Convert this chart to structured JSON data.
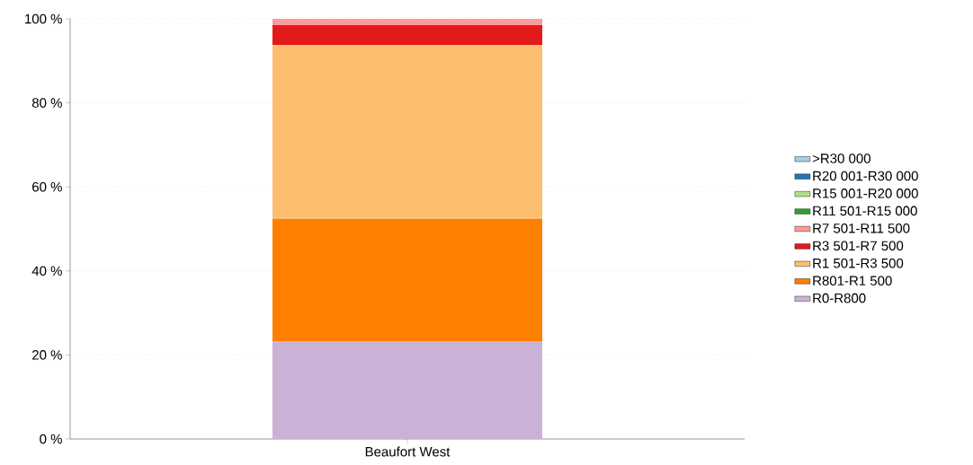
{
  "chart_data": {
    "type": "bar",
    "stacked": true,
    "categories": [
      "Beaufort West"
    ],
    "series": [
      {
        "name": "R0-R800",
        "color": "#cab2d6",
        "values": [
          23.3
        ]
      },
      {
        "name": "R801-R1 500",
        "color": "#ff7f00",
        "values": [
          29.1
        ]
      },
      {
        "name": "R1 501-R3 500",
        "color": "#fdbf6f",
        "values": [
          41.4
        ]
      },
      {
        "name": "R3 501-R7 500",
        "color": "#e31a1c",
        "values": [
          4.7
        ]
      },
      {
        "name": "R7 501-R11 500",
        "color": "#fb9a99",
        "values": [
          1.5
        ]
      },
      {
        "name": "R11 501-R15 000",
        "color": "#33a02c",
        "values": [
          0
        ]
      },
      {
        "name": "R15 001-R20 000",
        "color": "#b2df8a",
        "values": [
          0
        ]
      },
      {
        "name": "R20 001-R30 000",
        "color": "#1f78b4",
        "values": [
          0
        ]
      },
      {
        "name": ">R30 000",
        "color": "#a6cee3",
        "values": [
          0
        ]
      }
    ],
    "ylim": [
      0,
      100
    ],
    "yticks": [
      {
        "value": 0,
        "label": "0 %"
      },
      {
        "value": 20,
        "label": "20 %"
      },
      {
        "value": 40,
        "label": "40 %"
      },
      {
        "value": 60,
        "label": "60 %"
      },
      {
        "value": 80,
        "label": "80 %"
      },
      {
        "value": 100,
        "label": "100 %"
      }
    ],
    "grid": "y",
    "legend": "right"
  }
}
